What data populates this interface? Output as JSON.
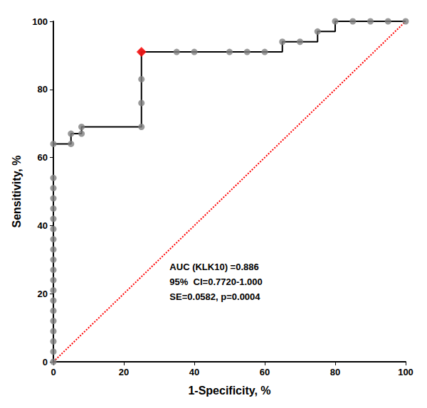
{
  "chart_data": {
    "type": "line",
    "xlabel": "1-Specificity, %",
    "ylabel": "Sensitivity, %",
    "xlim": [
      0,
      100
    ],
    "ylim": [
      0,
      100
    ],
    "xticks": [
      0,
      20,
      40,
      60,
      80,
      100
    ],
    "yticks": [
      0,
      20,
      40,
      60,
      80,
      100
    ],
    "grid": false,
    "series": [
      {
        "type": "line",
        "line_style": "dotted",
        "color": "#ff0000",
        "x": [
          0,
          100
        ],
        "values": [
          0,
          100
        ]
      },
      {
        "type": "line",
        "line_style": "step_post",
        "color": "#000000",
        "x": [
          0,
          0,
          0,
          0,
          0,
          0,
          0,
          0,
          0,
          0,
          0,
          0,
          0,
          0,
          0,
          0,
          0,
          0,
          0,
          0,
          5,
          5,
          8,
          8,
          25,
          25,
          25,
          25,
          35,
          40,
          50,
          55,
          60,
          65,
          70,
          75,
          80,
          85,
          90,
          95,
          100
        ],
        "values": [
          0,
          3,
          6,
          9,
          12,
          15,
          18,
          21,
          24,
          27,
          30,
          33,
          36,
          39,
          42,
          45,
          48,
          51,
          54,
          64,
          64,
          67,
          67,
          69,
          69,
          76,
          83,
          91,
          91,
          91,
          91,
          91,
          91,
          94,
          94,
          97,
          100,
          100,
          100,
          100,
          100
        ]
      },
      {
        "type": "scatter",
        "marker": "circle",
        "color": "#808080",
        "x": [
          0,
          0,
          0,
          0,
          0,
          0,
          0,
          0,
          0,
          0,
          0,
          0,
          0,
          0,
          0,
          0,
          0,
          0,
          0,
          0,
          5,
          5,
          8,
          8,
          25,
          25,
          25,
          25,
          35,
          40,
          50,
          55,
          60,
          65,
          70,
          75,
          80,
          85,
          90,
          95,
          100
        ],
        "values": [
          0,
          3,
          6,
          9,
          12,
          15,
          18,
          21,
          24,
          27,
          30,
          33,
          36,
          39,
          42,
          45,
          48,
          51,
          54,
          64,
          64,
          67,
          67,
          69,
          69,
          76,
          83,
          91,
          91,
          91,
          91,
          91,
          91,
          94,
          94,
          97,
          100,
          100,
          100,
          100,
          100
        ]
      },
      {
        "type": "scatter",
        "marker": "diamond",
        "color": "#ff0000",
        "x": [
          25
        ],
        "values": [
          91
        ]
      }
    ],
    "annotations": [
      {
        "text": "AUC (KLK10) =0.886\n95%  CI=0.7720-1.000\nSE=0.0582, p=0.0004",
        "x": 33,
        "y": 30
      }
    ]
  }
}
